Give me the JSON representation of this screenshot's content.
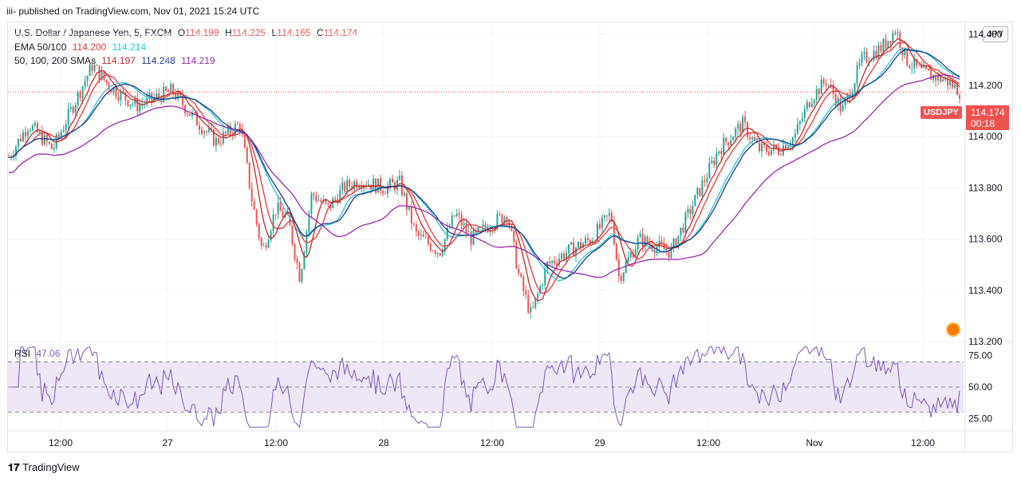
{
  "header": {
    "published": "iii- published on TradingView.com, Nov 01, 2021 15:24 UTC"
  },
  "legend": {
    "symbol": "U.S. Dollar / Japanese Yen, 5, FXCM",
    "ohlc": {
      "o_label": "O",
      "o": "114.199",
      "h_label": "H",
      "h": "114.225",
      "l_label": "L",
      "l": "114.165",
      "c_label": "C",
      "c": "114.174"
    },
    "ema_label": "EMA 50/100",
    "ema_values": [
      "114.200",
      "114.214"
    ],
    "sma_label": "50, 100, 200 SMAs",
    "sma_values": [
      "114.197",
      "114.248",
      "114.219"
    ]
  },
  "currency_button": "JPY",
  "price_tag": {
    "symbol": "USDJPY",
    "price": "114.174",
    "countdown": "00:18"
  },
  "rsi": {
    "label": "RSI",
    "value": "47.06"
  },
  "footer": {
    "brand": "TradingView"
  },
  "colors": {
    "up": "#26a69a",
    "down": "#ef5350",
    "ema50": "#e53935",
    "ema100": "#26c6da",
    "sma50": "#c62828",
    "sma100": "#1e3a8a",
    "sma200": "#9c27b0",
    "rsi": "#7e57c2"
  },
  "chart_data": [
    {
      "type": "candlestick",
      "title": "U.S. Dollar / Japanese Yen, 5, FXCM",
      "ylim": [
        113.2,
        114.44
      ],
      "yticks": [
        "114.400",
        "114.200",
        "114.000",
        "113.800",
        "113.600",
        "113.400",
        "113.200"
      ],
      "xticks": [
        "12:00",
        "27",
        "12:00",
        "28",
        "12:00",
        "29",
        "12:00",
        "Nov",
        "12:00"
      ],
      "last_price": 114.174,
      "price_path": [
        [
          0,
          113.92
        ],
        [
          25,
          114.05
        ],
        [
          55,
          113.95
        ],
        [
          85,
          114.15
        ],
        [
          105,
          114.28
        ],
        [
          125,
          114.2
        ],
        [
          160,
          114.12
        ],
        [
          205,
          114.18
        ],
        [
          230,
          114.08
        ],
        [
          260,
          113.98
        ],
        [
          290,
          114.05
        ],
        [
          305,
          113.75
        ],
        [
          318,
          113.55
        ],
        [
          335,
          113.72
        ],
        [
          350,
          113.68
        ],
        [
          365,
          113.45
        ],
        [
          380,
          113.78
        ],
        [
          400,
          113.72
        ],
        [
          420,
          113.8
        ],
        [
          440,
          113.83
        ],
        [
          470,
          113.8
        ],
        [
          490,
          113.82
        ],
        [
          510,
          113.62
        ],
        [
          540,
          113.55
        ],
        [
          560,
          113.7
        ],
        [
          580,
          113.6
        ],
        [
          600,
          113.65
        ],
        [
          625,
          113.7
        ],
        [
          640,
          113.45
        ],
        [
          655,
          113.3
        ],
        [
          675,
          113.5
        ],
        [
          700,
          113.55
        ],
        [
          730,
          113.6
        ],
        [
          755,
          113.7
        ],
        [
          765,
          113.45
        ],
        [
          790,
          113.6
        ],
        [
          830,
          113.55
        ],
        [
          860,
          113.75
        ],
        [
          890,
          113.95
        ],
        [
          920,
          114.05
        ],
        [
          940,
          113.95
        ],
        [
          965,
          113.95
        ],
        [
          985,
          114.0
        ],
        [
          1005,
          114.15
        ],
        [
          1025,
          114.22
        ],
        [
          1045,
          114.1
        ],
        [
          1070,
          114.3
        ],
        [
          1095,
          114.35
        ],
        [
          1112,
          114.42
        ],
        [
          1125,
          114.3
        ],
        [
          1145,
          114.25
        ],
        [
          1175,
          114.22
        ],
        [
          1195,
          114.17
        ]
      ],
      "series": [
        {
          "name": "EMA 50",
          "color": "#e53935",
          "lag": 60
        },
        {
          "name": "EMA 100",
          "color": "#26c6da",
          "lag": 110
        },
        {
          "name": "SMA 50",
          "color": "#c62828",
          "lag": 35
        },
        {
          "name": "SMA 100",
          "color": "#1e3a8a",
          "lag": 120
        },
        {
          "name": "SMA 200",
          "color": "#9c27b0",
          "lag": 220
        }
      ]
    },
    {
      "type": "line",
      "title": "RSI",
      "ylim": [
        15,
        85
      ],
      "yticks": [
        "75.00",
        "50.00",
        "25.00"
      ],
      "levels": [
        70,
        50,
        30
      ],
      "last_value": 47.06
    }
  ]
}
